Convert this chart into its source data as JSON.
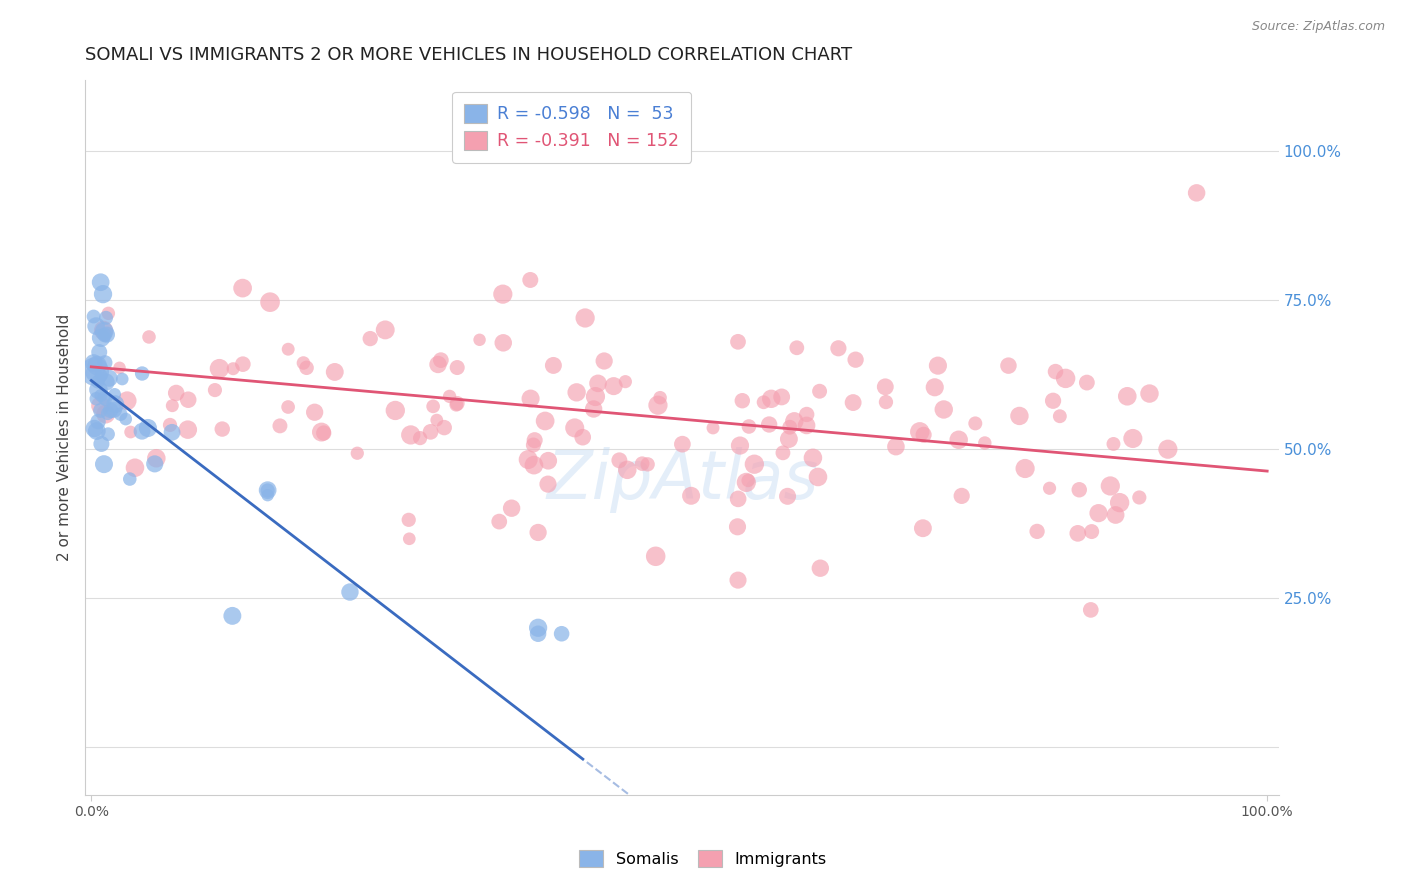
{
  "title": "SOMALI VS IMMIGRANTS 2 OR MORE VEHICLES IN HOUSEHOLD CORRELATION CHART",
  "source": "Source: ZipAtlas.com",
  "ylabel": "2 or more Vehicles in Household",
  "xlim": [
    -0.005,
    1.01
  ],
  "ylim": [
    -0.08,
    1.12
  ],
  "ytick_values": [
    0.0,
    0.25,
    0.5,
    0.75,
    1.0
  ],
  "right_ytick_labels": [
    "25.0%",
    "50.0%",
    "75.0%",
    "100.0%"
  ],
  "right_ytick_values": [
    0.25,
    0.5,
    0.75,
    1.0
  ],
  "somali_color": "#8ab4e8",
  "immigrants_color": "#f4a0b0",
  "somali_line_color": "#3a6bc0",
  "immigrants_line_color": "#e05575",
  "legend_R_somali": "R = -0.598",
  "legend_N_somali": "N =  53",
  "legend_R_immigrants": "R = -0.391",
  "legend_N_immigrants": "N = 152",
  "somali_R_color": "#4a7fd4",
  "immigrants_R_color": "#e05575",
  "watermark": "ZipAtlas",
  "background_color": "#ffffff",
  "grid_color": "#dddddd",
  "title_fontsize": 13,
  "axis_label_fontsize": 11,
  "tick_fontsize": 10,
  "right_tick_color": "#4a90d9",
  "somali_line_intercept": 0.615,
  "somali_line_slope": -1.52,
  "somali_line_solid_end": 0.42,
  "somali_line_dash_end": 0.6,
  "imm_line_intercept": 0.638,
  "imm_line_slope": -0.175
}
